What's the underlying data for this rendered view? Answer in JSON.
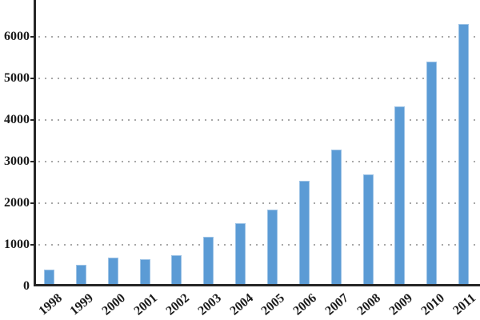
{
  "chart_data": {
    "type": "bar",
    "title": "",
    "xlabel": "",
    "ylabel": "",
    "categories": [
      "1998",
      "1999",
      "2000",
      "2001",
      "2002",
      "2003",
      "2004",
      "2005",
      "2006",
      "2007",
      "2008",
      "2009",
      "2010",
      "2011"
    ],
    "values": [
      390,
      510,
      690,
      650,
      740,
      1180,
      1510,
      1830,
      2530,
      3280,
      2690,
      4320,
      5390,
      6300
    ],
    "yticks": [
      0,
      1000,
      2000,
      3000,
      4000,
      5000,
      6000
    ],
    "ylim": [
      0,
      6875
    ],
    "grid": "dotted-horizontal",
    "legend": "none",
    "bar_color": "#5b9bd5",
    "bar_edge_color": "#9dc3e6",
    "gridline_color": "#a8a8a8",
    "axis_color": "#262626",
    "text_color": "#1a1a1a"
  }
}
